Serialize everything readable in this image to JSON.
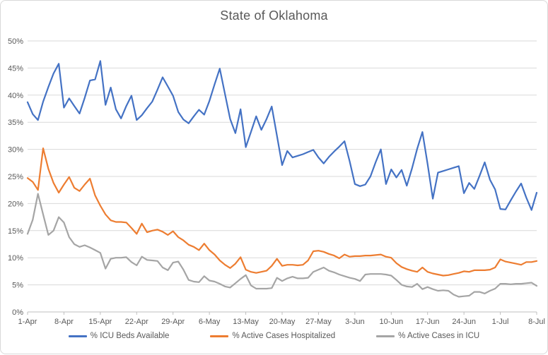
{
  "chart_data": {
    "type": "line",
    "title": "State of Oklahoma",
    "x_tick_labels": [
      "1-Apr",
      "8-Apr",
      "15-Apr",
      "22-Apr",
      "29-Apr",
      "6-May",
      "13-May",
      "20-May",
      "27-May",
      "3-Jun",
      "10-Jun",
      "17-Jun",
      "24-Jun",
      "1-Jul",
      "8-Jul"
    ],
    "x_points_per_tick": 7,
    "n_points": 99,
    "ylim": [
      0,
      50
    ],
    "y_tick_step": 5,
    "y_tick_labels": [
      "0%",
      "5%",
      "10%",
      "15%",
      "20%",
      "25%",
      "30%",
      "35%",
      "40%",
      "45%",
      "50%"
    ],
    "grid": true,
    "legend_position": "bottom",
    "series": [
      {
        "name": "% ICU Beds Available",
        "color": "#4472C4",
        "values": [
          38.7,
          36.5,
          35.4,
          38.8,
          41.5,
          44.0,
          45.8,
          37.7,
          39.4,
          38.0,
          36.6,
          39.5,
          42.7,
          42.9,
          46.3,
          38.2,
          41.4,
          37.4,
          35.7,
          38.0,
          39.9,
          35.4,
          36.3,
          37.6,
          38.8,
          41.0,
          43.3,
          41.6,
          39.9,
          36.9,
          35.5,
          34.8,
          36.1,
          37.3,
          36.4,
          38.9,
          42.0,
          44.9,
          40.2,
          35.6,
          33.0,
          37.4,
          30.4,
          33.2,
          36.1,
          33.6,
          35.6,
          37.9,
          32.5,
          27.1,
          29.7,
          28.5,
          28.8,
          29.1,
          29.5,
          29.9,
          28.5,
          27.4,
          28.6,
          29.6,
          30.5,
          31.5,
          27.8,
          23.6,
          23.2,
          23.5,
          25.0,
          27.6,
          30.0,
          23.6,
          26.3,
          24.8,
          26.2,
          23.3,
          26.5,
          30.1,
          33.2,
          27.3,
          20.9,
          25.7,
          26.0,
          26.3,
          26.6,
          26.9,
          21.9,
          23.8,
          22.7,
          25.1,
          27.6,
          24.4,
          22.6,
          19.0,
          18.9,
          20.6,
          22.2,
          23.7,
          21.1,
          18.8,
          22.0
        ]
      },
      {
        "name": "% Active Cases Hospitalized",
        "color": "#ED7D31",
        "values": [
          24.7,
          24.0,
          22.5,
          30.2,
          26.4,
          23.8,
          22.0,
          23.5,
          24.9,
          22.9,
          22.3,
          23.5,
          24.6,
          21.5,
          19.6,
          18.0,
          16.9,
          16.6,
          16.6,
          16.5,
          15.5,
          14.4,
          16.3,
          14.7,
          15.0,
          15.2,
          14.8,
          14.2,
          14.9,
          13.8,
          13.2,
          12.4,
          12.0,
          11.4,
          12.6,
          11.4,
          10.6,
          9.5,
          8.7,
          8.1,
          8.9,
          10.1,
          7.8,
          7.4,
          7.2,
          7.4,
          7.6,
          8.5,
          9.8,
          8.5,
          8.7,
          8.7,
          8.6,
          8.7,
          9.5,
          11.2,
          11.3,
          11.1,
          10.7,
          10.4,
          9.9,
          10.6,
          10.2,
          10.3,
          10.3,
          10.4,
          10.4,
          10.5,
          10.6,
          10.2,
          10.0,
          9.0,
          8.3,
          7.9,
          7.6,
          7.4,
          8.2,
          7.4,
          7.1,
          6.9,
          6.7,
          6.8,
          7.0,
          7.2,
          7.5,
          7.4,
          7.7,
          7.7,
          7.7,
          7.8,
          8.2,
          9.7,
          9.3,
          9.1,
          8.9,
          8.7,
          9.2,
          9.2,
          9.4
        ]
      },
      {
        "name": "% Active Cases in ICU",
        "color": "#A5A5A5",
        "values": [
          14.4,
          17.0,
          21.8,
          18.0,
          14.2,
          15.0,
          17.5,
          16.5,
          13.8,
          12.5,
          12.0,
          12.3,
          11.9,
          11.4,
          10.9,
          8.0,
          9.8,
          10.0,
          10.0,
          10.1,
          9.2,
          8.6,
          10.2,
          9.6,
          9.5,
          9.4,
          8.2,
          7.7,
          9.1,
          9.3,
          7.8,
          5.9,
          5.6,
          5.5,
          6.6,
          5.8,
          5.6,
          5.2,
          4.7,
          4.5,
          5.3,
          6.1,
          6.8,
          4.9,
          4.3,
          4.3,
          4.3,
          4.4,
          6.3,
          5.7,
          6.2,
          6.5,
          6.2,
          6.2,
          6.3,
          7.4,
          7.8,
          8.2,
          7.6,
          7.3,
          6.9,
          6.6,
          6.3,
          6.1,
          5.7,
          6.9,
          7.0,
          7.0,
          7.0,
          6.9,
          6.7,
          5.9,
          5.0,
          4.7,
          4.6,
          5.2,
          4.2,
          4.6,
          4.2,
          3.9,
          4.0,
          3.9,
          3.2,
          2.8,
          2.9,
          3.0,
          3.7,
          3.7,
          3.4,
          3.9,
          4.3,
          5.2,
          5.2,
          5.1,
          5.2,
          5.2,
          5.3,
          5.4,
          4.8
        ]
      }
    ]
  },
  "styles": {
    "background": "#FFFFFF",
    "border_color": "#D9D9D9",
    "gridline_color": "#D9D9D9",
    "axis_line_color": "#BFBFBF",
    "axis_label_color": "#595959",
    "title_color": "#595959"
  }
}
